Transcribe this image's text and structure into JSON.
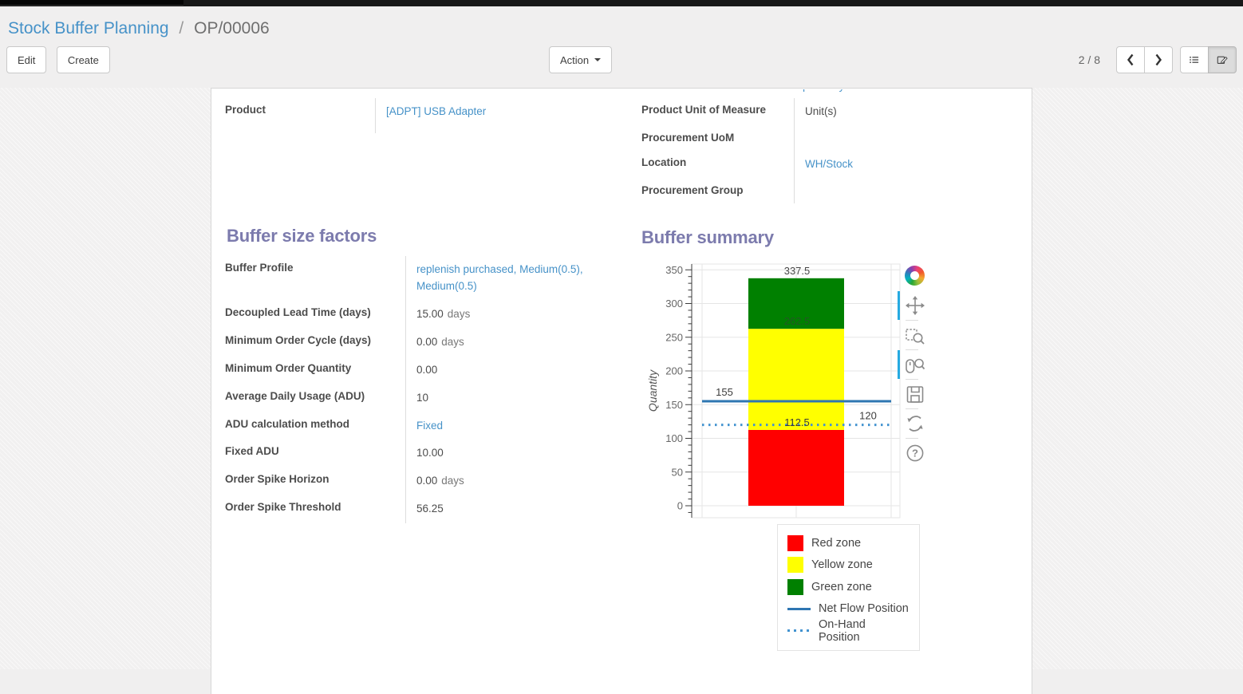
{
  "breadcrumb": {
    "parent": "Stock Buffer Planning",
    "separator": "/",
    "current": "OP/00006"
  },
  "control_panel": {
    "edit_label": "Edit",
    "create_label": "Create",
    "action_label": "Action",
    "pager_text": "2 / 8"
  },
  "form": {
    "clipped_value_fragment": "p y",
    "left_fields": [
      {
        "label": "Product",
        "value": "[ADPT] USB Adapter",
        "link": true
      }
    ],
    "right_fields": [
      {
        "label": "Product Unit of Measure",
        "value": "Unit(s)",
        "link": false
      },
      {
        "label": "Procurement UoM",
        "value": "",
        "link": false
      },
      {
        "label": "Location",
        "value": "WH/Stock",
        "link": true
      },
      {
        "label": "Procurement Group",
        "value": "",
        "link": false
      }
    ],
    "buffer_factors": {
      "title": "Buffer size factors",
      "fields": [
        {
          "label": "Buffer Profile",
          "value": "replenish purchased, Medium(0.5), Medium(0.5)",
          "link": true
        },
        {
          "label": "Decoupled Lead Time (days)",
          "value": "15.00",
          "unit": "days"
        },
        {
          "label": "Minimum Order Cycle (days)",
          "value": "0.00",
          "unit": "days"
        },
        {
          "label": "Minimum Order Quantity",
          "value": "0.00"
        },
        {
          "label": "Average Daily Usage (ADU)",
          "value": "10"
        },
        {
          "label": "ADU calculation method",
          "value": "Fixed",
          "link": true
        },
        {
          "label": "Fixed ADU",
          "value": "10.00"
        },
        {
          "label": "Order Spike Horizon",
          "value": "0.00",
          "unit": "days"
        },
        {
          "label": "Order Spike Threshold",
          "value": "56.25"
        }
      ]
    },
    "buffer_summary": {
      "title": "Buffer summary"
    }
  },
  "chart_data": {
    "type": "bar",
    "title": "",
    "xlabel": "",
    "ylabel": "Quantity",
    "ylim": [
      0,
      350
    ],
    "y_ticks": [
      0,
      50,
      100,
      150,
      200,
      250,
      300,
      350
    ],
    "grid": true,
    "zones": [
      {
        "name": "Red zone",
        "from": 0,
        "to": 112.5,
        "color": "#ff0000",
        "boundary_label": "112.5"
      },
      {
        "name": "Yellow zone",
        "from": 112.5,
        "to": 262.5,
        "color": "#ffff00",
        "boundary_label": "262.5"
      },
      {
        "name": "Green zone",
        "from": 262.5,
        "to": 337.5,
        "color": "#008000",
        "boundary_label": "337.5"
      }
    ],
    "lines": [
      {
        "name": "Net Flow Position",
        "value": 155,
        "label": "155",
        "style": "solid",
        "color": "#2e76b2"
      },
      {
        "name": "On-Hand Position",
        "value": 120,
        "label": "120",
        "style": "dotted",
        "color": "#4393d0"
      }
    ],
    "legend_position": "below-right"
  },
  "chart_toolbar": {
    "icons": [
      {
        "name": "bokeh-logo-icon",
        "active": false
      },
      {
        "name": "pan-tool-icon",
        "active": true
      },
      {
        "name": "box-zoom-tool-icon",
        "active": false
      },
      {
        "name": "wheel-zoom-tool-icon",
        "active": true
      },
      {
        "name": "save-tool-icon",
        "active": false
      },
      {
        "name": "reset-tool-icon",
        "active": false
      },
      {
        "name": "help-tool-icon",
        "active": false
      }
    ]
  }
}
